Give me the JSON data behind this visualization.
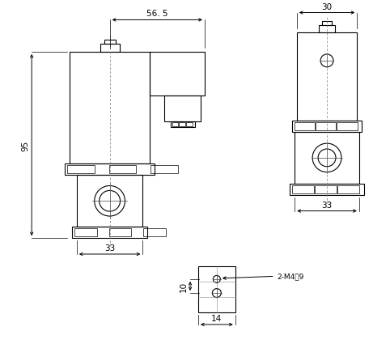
{
  "bg_color": "#ffffff",
  "line_color": "#000000",
  "lw": 0.8,
  "fig_width": 4.82,
  "fig_height": 4.31,
  "dpi": 100,
  "annotations": {
    "dim_56_5": "56. 5",
    "dim_30": "30",
    "dim_95": "95",
    "dim_33_left": "33",
    "dim_33_right": "33",
    "dim_10": "10",
    "dim_14": "14",
    "label_2m4": "2-M4淸9"
  }
}
